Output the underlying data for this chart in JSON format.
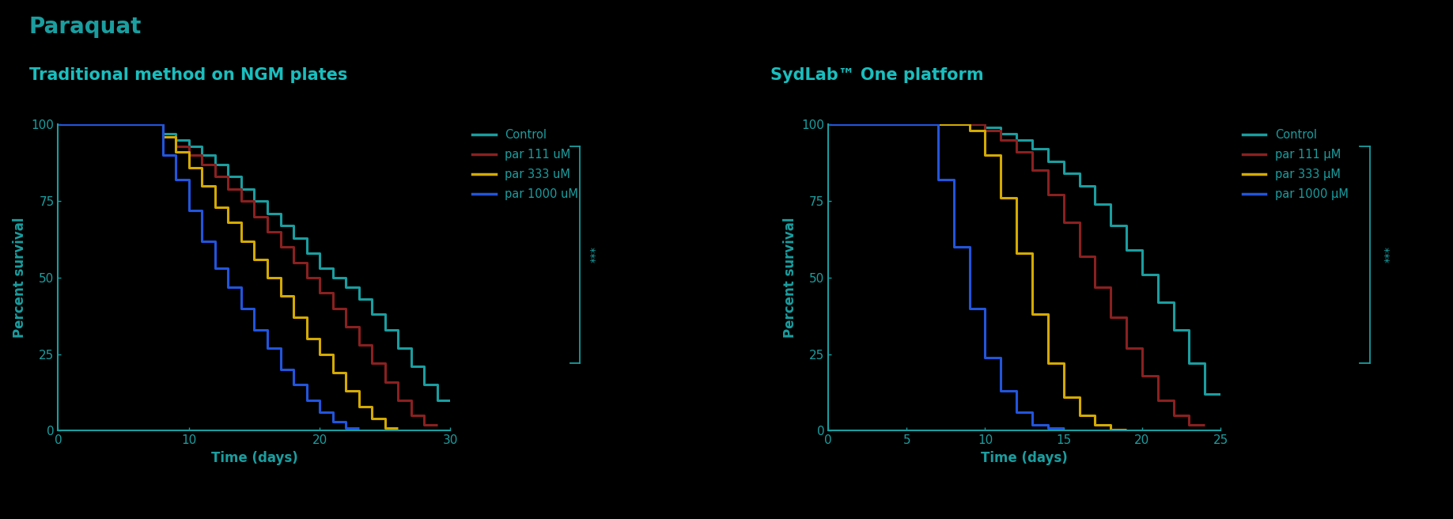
{
  "background_color": "#000000",
  "title_paraquat": "Paraquat",
  "title_paraquat_color": "#1a9ea0",
  "subtitle1": "Traditional method on NGM plates",
  "subtitle2": "SydLab™ One platform",
  "subtitle_color": "#1abebe",
  "axis_color": "#1a9ea0",
  "tick_color": "#1a9ea0",
  "label_color": "#1a9ea0",
  "colors": {
    "control": "#1a9ea0",
    "par111": "#8b2020",
    "par333": "#d4aa00",
    "par1000": "#2255dd"
  },
  "plot1": {
    "xlabel": "Time (days)",
    "ylabel": "Percent survival",
    "xlim": [
      0,
      30
    ],
    "ylim": [
      0,
      100
    ],
    "xticks": [
      0,
      10,
      20,
      30
    ],
    "yticks": [
      0,
      25,
      50,
      75,
      100
    ],
    "legend_labels": [
      "Control",
      "par 111 uM",
      "par 333 uM",
      "par 1000 uM"
    ],
    "curves": {
      "control": [
        [
          0,
          100
        ],
        [
          8,
          100
        ],
        [
          8,
          97
        ],
        [
          9,
          97
        ],
        [
          9,
          95
        ],
        [
          10,
          95
        ],
        [
          10,
          93
        ],
        [
          11,
          93
        ],
        [
          11,
          90
        ],
        [
          12,
          90
        ],
        [
          12,
          87
        ],
        [
          13,
          87
        ],
        [
          13,
          83
        ],
        [
          14,
          83
        ],
        [
          14,
          79
        ],
        [
          15,
          79
        ],
        [
          15,
          75
        ],
        [
          16,
          75
        ],
        [
          16,
          71
        ],
        [
          17,
          71
        ],
        [
          17,
          67
        ],
        [
          18,
          67
        ],
        [
          18,
          63
        ],
        [
          19,
          63
        ],
        [
          19,
          58
        ],
        [
          20,
          58
        ],
        [
          20,
          53
        ],
        [
          21,
          53
        ],
        [
          21,
          50
        ],
        [
          22,
          50
        ],
        [
          22,
          47
        ],
        [
          23,
          47
        ],
        [
          23,
          43
        ],
        [
          24,
          43
        ],
        [
          24,
          38
        ],
        [
          25,
          38
        ],
        [
          25,
          33
        ],
        [
          26,
          33
        ],
        [
          26,
          27
        ],
        [
          27,
          27
        ],
        [
          27,
          21
        ],
        [
          28,
          21
        ],
        [
          28,
          15
        ],
        [
          29,
          15
        ],
        [
          29,
          10
        ],
        [
          30,
          10
        ]
      ],
      "par111": [
        [
          0,
          100
        ],
        [
          8,
          100
        ],
        [
          8,
          96
        ],
        [
          9,
          96
        ],
        [
          9,
          93
        ],
        [
          10,
          93
        ],
        [
          10,
          90
        ],
        [
          11,
          90
        ],
        [
          11,
          87
        ],
        [
          12,
          87
        ],
        [
          12,
          83
        ],
        [
          13,
          83
        ],
        [
          13,
          79
        ],
        [
          14,
          79
        ],
        [
          14,
          75
        ],
        [
          15,
          75
        ],
        [
          15,
          70
        ],
        [
          16,
          70
        ],
        [
          16,
          65
        ],
        [
          17,
          65
        ],
        [
          17,
          60
        ],
        [
          18,
          60
        ],
        [
          18,
          55
        ],
        [
          19,
          55
        ],
        [
          19,
          50
        ],
        [
          20,
          50
        ],
        [
          20,
          45
        ],
        [
          21,
          45
        ],
        [
          21,
          40
        ],
        [
          22,
          40
        ],
        [
          22,
          34
        ],
        [
          23,
          34
        ],
        [
          23,
          28
        ],
        [
          24,
          28
        ],
        [
          24,
          22
        ],
        [
          25,
          22
        ],
        [
          25,
          16
        ],
        [
          26,
          16
        ],
        [
          26,
          10
        ],
        [
          27,
          10
        ],
        [
          27,
          5
        ],
        [
          28,
          5
        ],
        [
          28,
          2
        ],
        [
          29,
          2
        ]
      ],
      "par333": [
        [
          0,
          100
        ],
        [
          8,
          100
        ],
        [
          8,
          96
        ],
        [
          9,
          96
        ],
        [
          9,
          91
        ],
        [
          10,
          91
        ],
        [
          10,
          86
        ],
        [
          11,
          86
        ],
        [
          11,
          80
        ],
        [
          12,
          80
        ],
        [
          12,
          73
        ],
        [
          13,
          73
        ],
        [
          13,
          68
        ],
        [
          14,
          68
        ],
        [
          14,
          62
        ],
        [
          15,
          62
        ],
        [
          15,
          56
        ],
        [
          16,
          56
        ],
        [
          16,
          50
        ],
        [
          17,
          50
        ],
        [
          17,
          44
        ],
        [
          18,
          44
        ],
        [
          18,
          37
        ],
        [
          19,
          37
        ],
        [
          19,
          30
        ],
        [
          20,
          30
        ],
        [
          20,
          25
        ],
        [
          21,
          25
        ],
        [
          21,
          19
        ],
        [
          22,
          19
        ],
        [
          22,
          13
        ],
        [
          23,
          13
        ],
        [
          23,
          8
        ],
        [
          24,
          8
        ],
        [
          24,
          4
        ],
        [
          25,
          4
        ],
        [
          25,
          1
        ],
        [
          26,
          1
        ]
      ],
      "par1000": [
        [
          0,
          100
        ],
        [
          8,
          100
        ],
        [
          8,
          90
        ],
        [
          9,
          90
        ],
        [
          9,
          82
        ],
        [
          10,
          82
        ],
        [
          10,
          72
        ],
        [
          11,
          72
        ],
        [
          11,
          62
        ],
        [
          12,
          62
        ],
        [
          12,
          53
        ],
        [
          13,
          53
        ],
        [
          13,
          47
        ],
        [
          14,
          47
        ],
        [
          14,
          40
        ],
        [
          15,
          40
        ],
        [
          15,
          33
        ],
        [
          16,
          33
        ],
        [
          16,
          27
        ],
        [
          17,
          27
        ],
        [
          17,
          20
        ],
        [
          18,
          20
        ],
        [
          18,
          15
        ],
        [
          19,
          15
        ],
        [
          19,
          10
        ],
        [
          20,
          10
        ],
        [
          20,
          6
        ],
        [
          21,
          6
        ],
        [
          21,
          3
        ],
        [
          22,
          3
        ],
        [
          22,
          1
        ],
        [
          23,
          1
        ]
      ]
    }
  },
  "plot2": {
    "xlabel": "Time (days)",
    "ylabel": "Percent survival",
    "xlim": [
      0,
      25
    ],
    "ylim": [
      0,
      100
    ],
    "xticks": [
      0,
      5,
      10,
      15,
      20,
      25
    ],
    "yticks": [
      0,
      25,
      50,
      75,
      100
    ],
    "legend_labels": [
      "Control",
      "par 111 μM",
      "par 333 μM",
      "par 1000 μM"
    ],
    "curves": {
      "control": [
        [
          0,
          100
        ],
        [
          10,
          100
        ],
        [
          10,
          99
        ],
        [
          11,
          99
        ],
        [
          11,
          97
        ],
        [
          12,
          97
        ],
        [
          12,
          95
        ],
        [
          13,
          95
        ],
        [
          13,
          92
        ],
        [
          14,
          92
        ],
        [
          14,
          88
        ],
        [
          15,
          88
        ],
        [
          15,
          84
        ],
        [
          16,
          84
        ],
        [
          16,
          80
        ],
        [
          17,
          80
        ],
        [
          17,
          74
        ],
        [
          18,
          74
        ],
        [
          18,
          67
        ],
        [
          19,
          67
        ],
        [
          19,
          59
        ],
        [
          20,
          59
        ],
        [
          20,
          51
        ],
        [
          21,
          51
        ],
        [
          21,
          42
        ],
        [
          22,
          42
        ],
        [
          22,
          33
        ],
        [
          23,
          33
        ],
        [
          23,
          22
        ],
        [
          24,
          22
        ],
        [
          24,
          12
        ],
        [
          25,
          12
        ]
      ],
      "par111": [
        [
          0,
          100
        ],
        [
          10,
          100
        ],
        [
          10,
          98
        ],
        [
          11,
          98
        ],
        [
          11,
          95
        ],
        [
          12,
          95
        ],
        [
          12,
          91
        ],
        [
          13,
          91
        ],
        [
          13,
          85
        ],
        [
          14,
          85
        ],
        [
          14,
          77
        ],
        [
          15,
          77
        ],
        [
          15,
          68
        ],
        [
          16,
          68
        ],
        [
          16,
          57
        ],
        [
          17,
          57
        ],
        [
          17,
          47
        ],
        [
          18,
          47
        ],
        [
          18,
          37
        ],
        [
          19,
          37
        ],
        [
          19,
          27
        ],
        [
          20,
          27
        ],
        [
          20,
          18
        ],
        [
          21,
          18
        ],
        [
          21,
          10
        ],
        [
          22,
          10
        ],
        [
          22,
          5
        ],
        [
          23,
          5
        ],
        [
          23,
          2
        ],
        [
          24,
          2
        ]
      ],
      "par333": [
        [
          0,
          100
        ],
        [
          9,
          100
        ],
        [
          9,
          98
        ],
        [
          10,
          98
        ],
        [
          10,
          90
        ],
        [
          11,
          90
        ],
        [
          11,
          76
        ],
        [
          12,
          76
        ],
        [
          12,
          58
        ],
        [
          13,
          58
        ],
        [
          13,
          38
        ],
        [
          14,
          38
        ],
        [
          14,
          22
        ],
        [
          15,
          22
        ],
        [
          15,
          11
        ],
        [
          16,
          11
        ],
        [
          16,
          5
        ],
        [
          17,
          5
        ],
        [
          17,
          2
        ],
        [
          18,
          2
        ],
        [
          18,
          0.5
        ],
        [
          19,
          0.5
        ]
      ],
      "par1000": [
        [
          0,
          100
        ],
        [
          7,
          100
        ],
        [
          7,
          82
        ],
        [
          8,
          82
        ],
        [
          8,
          60
        ],
        [
          9,
          60
        ],
        [
          9,
          40
        ],
        [
          10,
          40
        ],
        [
          10,
          24
        ],
        [
          11,
          24
        ],
        [
          11,
          13
        ],
        [
          12,
          13
        ],
        [
          12,
          6
        ],
        [
          13,
          6
        ],
        [
          13,
          2
        ],
        [
          14,
          2
        ],
        [
          14,
          1
        ],
        [
          15,
          1
        ]
      ]
    }
  },
  "significance_bracket": "***"
}
